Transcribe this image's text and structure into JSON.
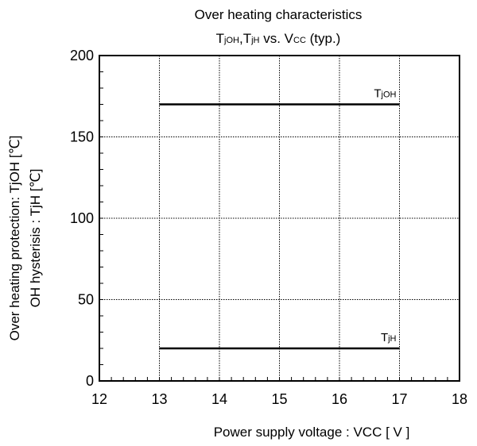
{
  "chart_data": {
    "type": "line",
    "title": "Over heating characteristics",
    "subtitle": {
      "parts": [
        {
          "text": "T",
          "sub": "jOH"
        },
        {
          "text": ",T",
          "sub": "jH"
        },
        {
          "text": " vs. V",
          "sub": "CC"
        },
        {
          "text": " (typ.)",
          "sub": ""
        }
      ]
    },
    "xlabel": "Power supply voltage : VCC [ V ]",
    "ylabel_line1": "Over heating protection:  TjOH [℃]",
    "ylabel_line2": "OH hysterisis : TjH [℃]",
    "xlim": [
      12,
      18
    ],
    "ylim": [
      0,
      200
    ],
    "x_ticks": [
      "12",
      "13",
      "14",
      "15",
      "16",
      "17",
      "18"
    ],
    "y_ticks": [
      "0",
      "50",
      "100",
      "150",
      "200"
    ],
    "grid": true,
    "series": [
      {
        "name": "TjOH",
        "label_main": "T",
        "label_sub": "jOH",
        "x": [
          13,
          17
        ],
        "y": [
          170,
          170
        ],
        "color": "#000000"
      },
      {
        "name": "TjH",
        "label_main": "T",
        "label_sub": "jH",
        "x": [
          13,
          17
        ],
        "y": [
          20,
          20
        ],
        "color": "#000000"
      }
    ]
  }
}
